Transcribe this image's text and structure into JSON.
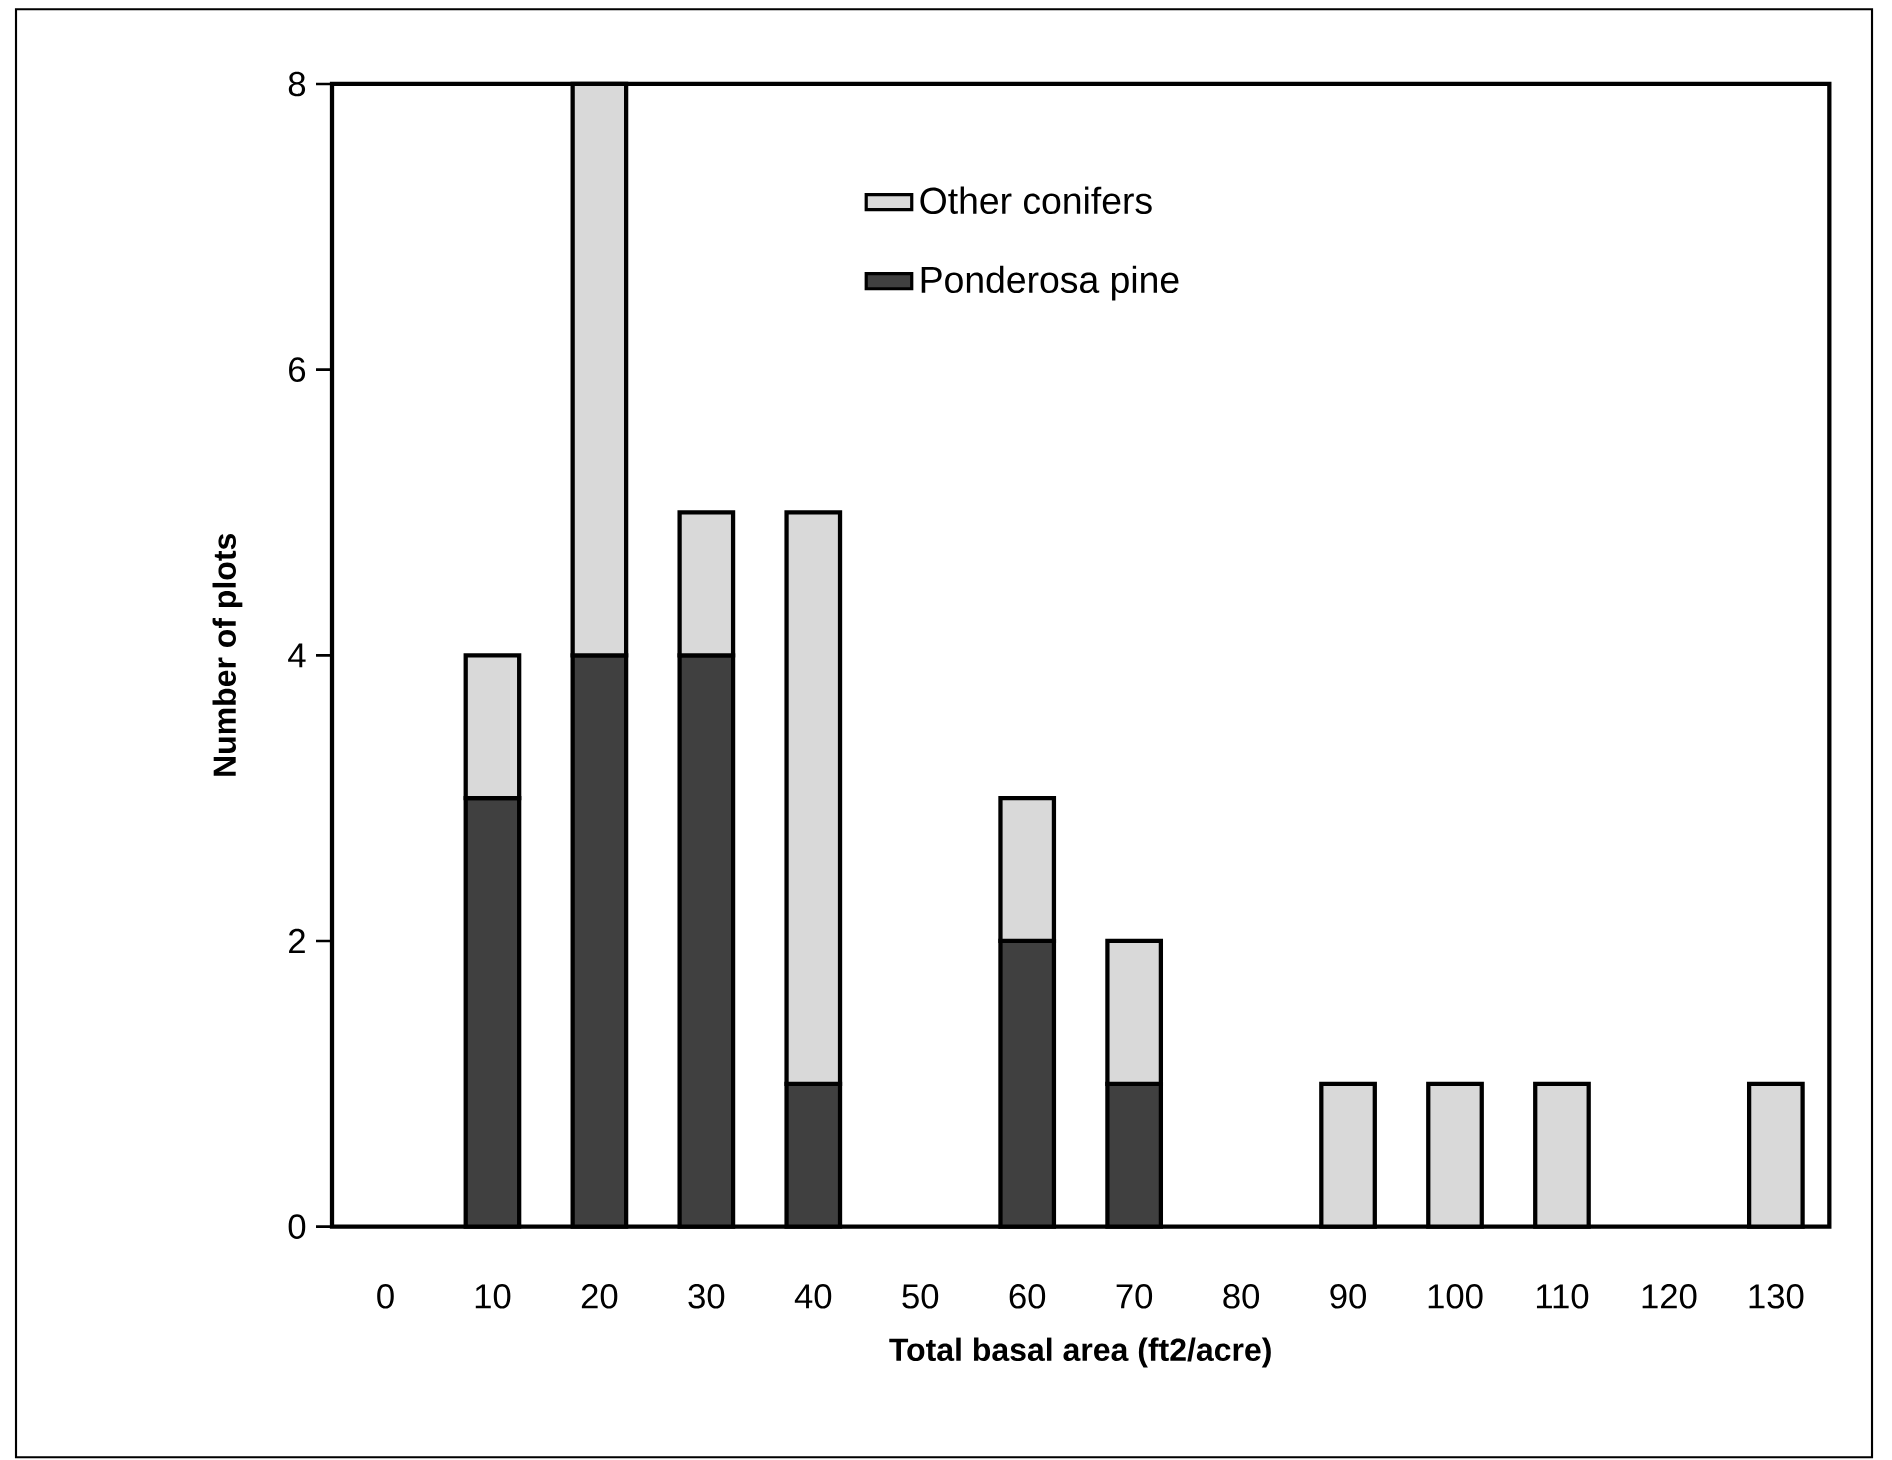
{
  "chart_data": {
    "type": "bar",
    "stacked": true,
    "xlabel": "Total basal area (ft2/acre)",
    "ylabel": "Number of plots",
    "categories": [
      "0",
      "10",
      "20",
      "30",
      "40",
      "50",
      "60",
      "70",
      "80",
      "90",
      "100",
      "110",
      "120",
      "130"
    ],
    "series": [
      {
        "name": "Ponderosa pine",
        "color": "#404040",
        "values": [
          null,
          3,
          4,
          4,
          1,
          null,
          2,
          1,
          null,
          null,
          null,
          null,
          null,
          null
        ]
      },
      {
        "name": "Other conifers",
        "color": "#d9d9d9",
        "values": [
          null,
          1,
          4,
          1,
          4,
          null,
          1,
          1,
          null,
          1,
          1,
          1,
          null,
          1
        ]
      }
    ],
    "ylim": [
      0,
      8
    ],
    "yticks": [
      0,
      2,
      4,
      6,
      8
    ],
    "legend": "top",
    "grid": false
  }
}
